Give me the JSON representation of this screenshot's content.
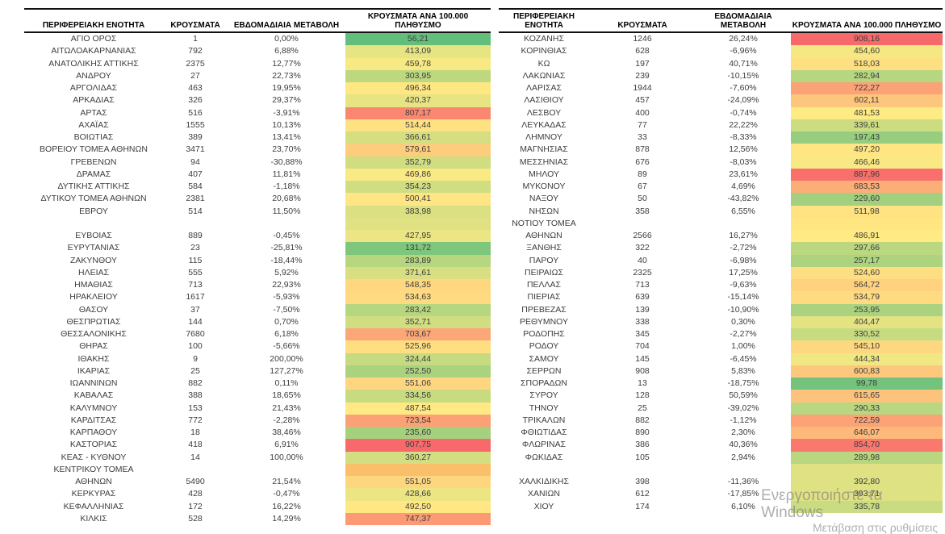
{
  "app": {
    "background": "#ffffff",
    "text_color": "#3d3d3d",
    "header_text_color": "#000000",
    "border_color": "#111111"
  },
  "color_scale": {
    "type": "3-color",
    "min_value": 56.21,
    "mid_value": 482.19,
    "max_value": 908.16,
    "min_color": "#63BE7B",
    "mid_color": "#FFEB84",
    "max_color": "#F8696B"
  },
  "tables": [
    {
      "id": "left",
      "headers": {
        "region": "ΠΕΡΙΦΕΡΕΙΑΚΗ ΕΝΟΤΗΤΑ",
        "cases": "ΚΡΟΥΣΜΑΤΑ",
        "change": "ΕΒΔΟΜΑΔΙΑΙΑ ΜΕΤΑΒΟΛΗ",
        "per100k": "ΚΡΟΥΣΜΑΤΑ ΑΝΑ 100.000 ΠΛΗΘΥΣΜΟ"
      },
      "rows": [
        {
          "name": "ΑΓΙΟ ΟΡΟΣ",
          "cases": "1",
          "change": "0,00%",
          "per100k": "56,21"
        },
        {
          "name": "ΑΙΤΩΛΟΑΚΑΡΝΑΝΙΑΣ",
          "cases": "792",
          "change": "6,88%",
          "per100k": "413,09"
        },
        {
          "name": "ΑΝΑΤΟΛΙΚΗΣ ΑΤΤΙΚΗΣ",
          "cases": "2375",
          "change": "12,77%",
          "per100k": "459,78"
        },
        {
          "name": "ΑΝΔΡΟΥ",
          "cases": "27",
          "change": "22,73%",
          "per100k": "303,95"
        },
        {
          "name": "ΑΡΓΟΛΙΔΑΣ",
          "cases": "463",
          "change": "19,95%",
          "per100k": "496,34"
        },
        {
          "name": "ΑΡΚΑΔΙΑΣ",
          "cases": "326",
          "change": "29,37%",
          "per100k": "420,37"
        },
        {
          "name": "ΑΡΤΑΣ",
          "cases": "516",
          "change": "-3,91%",
          "per100k": "807,17"
        },
        {
          "name": "ΑΧΑΪΑΣ",
          "cases": "1555",
          "change": "10,13%",
          "per100k": "514,44"
        },
        {
          "name": "ΒΟΙΩΤΙΑΣ",
          "cases": "389",
          "change": "13,41%",
          "per100k": "366,61"
        },
        {
          "name": "ΒΟΡΕΙΟΥ ΤΟΜΕΑ ΑΘΗΝΩΝ",
          "cases": "3471",
          "change": "23,70%",
          "per100k": "579,61"
        },
        {
          "name": "ΓΡΕΒΕΝΩΝ",
          "cases": "94",
          "change": "-30,88%",
          "per100k": "352,79"
        },
        {
          "name": "ΔΡΑΜΑΣ",
          "cases": "407",
          "change": "11,81%",
          "per100k": "469,86"
        },
        {
          "name": "ΔΥΤΙΚΗΣ ΑΤΤΙΚΗΣ",
          "cases": "584",
          "change": "-1,18%",
          "per100k": "354,23"
        },
        {
          "name": "ΔΥΤΙΚΟΥ ΤΟΜΕΑ ΑΘΗΝΩΝ",
          "cases": "2381",
          "change": "20,68%",
          "per100k": "500,41"
        },
        {
          "name": "ΕΒΡΟΥ",
          "cases": "514",
          "change": "11,50%",
          "per100k": "383,98"
        },
        {
          "name": "",
          "cases": "",
          "change": "",
          "per100k": "",
          "cell_color": "#dده182"
        },
        {
          "name": "ΕΥΒΟΙΑΣ",
          "cases": "889",
          "change": "-0,45%",
          "per100k": "427,95"
        },
        {
          "name": "ΕΥΡΥΤΑΝΙΑΣ",
          "cases": "23",
          "change": "-25,81%",
          "per100k": "131,72"
        },
        {
          "name": "ΖΑΚΥΝΘΟΥ",
          "cases": "115",
          "change": "-18,44%",
          "per100k": "283,89"
        },
        {
          "name": "ΗΛΕΙΑΣ",
          "cases": "555",
          "change": "5,92%",
          "per100k": "371,61"
        },
        {
          "name": "ΗΜΑΘΙΑΣ",
          "cases": "713",
          "change": "22,93%",
          "per100k": "548,35"
        },
        {
          "name": "ΗΡΑΚΛΕΙΟΥ",
          "cases": "1617",
          "change": "-5,93%",
          "per100k": "534,63"
        },
        {
          "name": "ΘΑΣΟΥ",
          "cases": "37",
          "change": "-7,50%",
          "per100k": "283,42"
        },
        {
          "name": "ΘΕΣΠΡΩΤΙΑΣ",
          "cases": "144",
          "change": "0,70%",
          "per100k": "352,71"
        },
        {
          "name": "ΘΕΣΣΑΛΟΝΙΚΗΣ",
          "cases": "7680",
          "change": "6,18%",
          "per100k": "703,67"
        },
        {
          "name": "ΘΗΡΑΣ",
          "cases": "100",
          "change": "-5,66%",
          "per100k": "525,96"
        },
        {
          "name": "ΙΘΑΚΗΣ",
          "cases": "9",
          "change": "200,00%",
          "per100k": "324,44"
        },
        {
          "name": "ΙΚΑΡΙΑΣ",
          "cases": "25",
          "change": "127,27%",
          "per100k": "252,50"
        },
        {
          "name": "ΙΩΑΝΝΙΝΩΝ",
          "cases": "882",
          "change": "0,11%",
          "per100k": "551,06"
        },
        {
          "name": "ΚΑΒΑΛΑΣ",
          "cases": "388",
          "change": "18,65%",
          "per100k": "334,56"
        },
        {
          "name": "ΚΑΛΥΜΝΟΥ",
          "cases": "153",
          "change": "21,43%",
          "per100k": "487,54"
        },
        {
          "name": "ΚΑΡΔΙΤΣΑΣ",
          "cases": "772",
          "change": "-2,28%",
          "per100k": "723,54"
        },
        {
          "name": "ΚΑΡΠΑΘΟΥ",
          "cases": "18",
          "change": "38,46%",
          "per100k": "235,60"
        },
        {
          "name": "ΚΑΣΤΟΡΙΑΣ",
          "cases": "418",
          "change": "6,91%",
          "per100k": "907,75"
        },
        {
          "name": "ΚΕΑΣ - ΚΥΘΝΟΥ",
          "cases": "14",
          "change": "100,00%",
          "per100k": "360,27"
        },
        {
          "name": "ΚΕΝΤΡΙΚΟΥ ΤΟΜΕΑ",
          "cases": "",
          "change": "",
          "per100k": "",
          "cell_color": "#f9bf6a"
        },
        {
          "name": "ΑΘΗΝΩΝ",
          "cases": "5490",
          "change": "21,54%",
          "per100k": "551,05"
        },
        {
          "name": "ΚΕΡΚΥΡΑΣ",
          "cases": "428",
          "change": "-0,47%",
          "per100k": "428,66"
        },
        {
          "name": "ΚΕΦΑΛΛΗΝΙΑΣ",
          "cases": "172",
          "change": "16,22%",
          "per100k": "492,50"
        },
        {
          "name": "ΚΙΛΚΙΣ",
          "cases": "528",
          "change": "14,29%",
          "per100k": "747,37"
        }
      ]
    },
    {
      "id": "right",
      "headers": {
        "region": "ΠΕΡΙΦΕΡΕΙΑΚΗ ΕΝΟΤΗΤΑ",
        "cases": "ΚΡΟΥΣΜΑΤΑ",
        "change": "ΕΒΔΟΜΑΔΙΑΙΑ ΜΕΤΑΒΟΛΗ",
        "per100k": "ΚΡΟΥΣΜΑΤΑ ΑΝΑ 100.000 ΠΛΗΘΥΣΜΟ"
      },
      "rows": [
        {
          "name": "ΚΟΖΑΝΗΣ",
          "cases": "1246",
          "change": "26,24%",
          "per100k": "908,16"
        },
        {
          "name": "ΚΟΡΙΝΘΙΑΣ",
          "cases": "628",
          "change": "-6,96%",
          "per100k": "454,60"
        },
        {
          "name": "ΚΩ",
          "cases": "197",
          "change": "40,71%",
          "per100k": "518,03"
        },
        {
          "name": "ΛΑΚΩΝΙΑΣ",
          "cases": "239",
          "change": "-10,15%",
          "per100k": "282,94"
        },
        {
          "name": "ΛΑΡΙΣΑΣ",
          "cases": "1944",
          "change": "-7,60%",
          "per100k": "722,27"
        },
        {
          "name": "ΛΑΣΙΘΙΟΥ",
          "cases": "457",
          "change": "-24,09%",
          "per100k": "602,11"
        },
        {
          "name": "ΛΕΣΒΟΥ",
          "cases": "400",
          "change": "-0,74%",
          "per100k": "481,53"
        },
        {
          "name": "ΛΕΥΚΑΔΑΣ",
          "cases": "77",
          "change": "22,22%",
          "per100k": "339,61"
        },
        {
          "name": "ΛΗΜΝΟΥ",
          "cases": "33",
          "change": "-8,33%",
          "per100k": "197,43"
        },
        {
          "name": "ΜΑΓΝΗΣΙΑΣ",
          "cases": "878",
          "change": "12,56%",
          "per100k": "497,20"
        },
        {
          "name": "ΜΕΣΣΗΝΙΑΣ",
          "cases": "676",
          "change": "-8,03%",
          "per100k": "466,46"
        },
        {
          "name": "ΜΗΛΟΥ",
          "cases": "89",
          "change": "23,61%",
          "per100k": "887,96"
        },
        {
          "name": "ΜΥΚΟΝΟΥ",
          "cases": "67",
          "change": "4,69%",
          "per100k": "683,53"
        },
        {
          "name": "ΝΑΞΟΥ",
          "cases": "50",
          "change": "-43,82%",
          "per100k": "229,60"
        },
        {
          "name": "ΝΗΣΩΝ",
          "cases": "358",
          "change": "6,55%",
          "per100k": "511,98"
        },
        {
          "name": "ΝΟΤΙΟΥ ΤΟΜΕΑ",
          "cases": "",
          "change": "",
          "per100k": "",
          "cell_color": "#ffe681"
        },
        {
          "name": "ΑΘΗΝΩΝ",
          "cases": "2566",
          "change": "16,27%",
          "per100k": "486,91"
        },
        {
          "name": "ΞΑΝΘΗΣ",
          "cases": "322",
          "change": "-2,72%",
          "per100k": "297,66"
        },
        {
          "name": "ΠΑΡΟΥ",
          "cases": "40",
          "change": "-6,98%",
          "per100k": "257,17"
        },
        {
          "name": "ΠΕΙΡΑΙΩΣ",
          "cases": "2325",
          "change": "17,25%",
          "per100k": "524,60"
        },
        {
          "name": "ΠΕΛΛΑΣ",
          "cases": "713",
          "change": "-9,63%",
          "per100k": "564,72"
        },
        {
          "name": "ΠΙΕΡΙΑΣ",
          "cases": "639",
          "change": "-15,14%",
          "per100k": "534,79"
        },
        {
          "name": "ΠΡΕΒΕΖΑΣ",
          "cases": "139",
          "change": "-10,90%",
          "per100k": "253,95"
        },
        {
          "name": "ΡΕΘΥΜΝΟΥ",
          "cases": "338",
          "change": "0,30%",
          "per100k": "404,47"
        },
        {
          "name": "ΡΟΔΟΠΗΣ",
          "cases": "345",
          "change": "-2,27%",
          "per100k": "330,52"
        },
        {
          "name": "ΡΟΔΟΥ",
          "cases": "704",
          "change": "1,00%",
          "per100k": "545,10"
        },
        {
          "name": "ΣΑΜΟΥ",
          "cases": "145",
          "change": "-6,45%",
          "per100k": "444,34"
        },
        {
          "name": "ΣΕΡΡΩΝ",
          "cases": "908",
          "change": "5,83%",
          "per100k": "600,83"
        },
        {
          "name": "ΣΠΟΡΑΔΩΝ",
          "cases": "13",
          "change": "-18,75%",
          "per100k": "99,78"
        },
        {
          "name": "ΣΥΡΟΥ",
          "cases": "128",
          "change": "50,59%",
          "per100k": "615,65"
        },
        {
          "name": "ΤΗΝΟΥ",
          "cases": "25",
          "change": "-39,02%",
          "per100k": "290,33"
        },
        {
          "name": "ΤΡΙΚΑΛΩΝ",
          "cases": "882",
          "change": "-1,12%",
          "per100k": "722,59"
        },
        {
          "name": "ΦΘΙΩΤΙΔΑΣ",
          "cases": "890",
          "change": "2,30%",
          "per100k": "646,07"
        },
        {
          "name": "ΦΛΩΡΙΝΑΣ",
          "cases": "386",
          "change": "40,36%",
          "per100k": "854,70"
        },
        {
          "name": "ΦΩΚΙΔΑΣ",
          "cases": "105",
          "change": "2,94%",
          "per100k": "289,98"
        },
        {
          "name": "",
          "cases": "",
          "change": "",
          "per100k": "",
          "cell_color": "#dfe182"
        },
        {
          "name": "ΧΑΛΚΙΔΙΚΗΣ",
          "cases": "398",
          "change": "-11,36%",
          "per100k": "392,80"
        },
        {
          "name": "ΧΑΝΙΩΝ",
          "cases": "612",
          "change": "-17,85%",
          "per100k": "393,71"
        },
        {
          "name": "ΧΙΟΥ",
          "cases": "174",
          "change": "6,10%",
          "per100k": "335,78"
        }
      ]
    }
  ],
  "watermark": {
    "line1": "Ενεργοποιήστε τα Windows",
    "line2": "Μετάβαση στις ρυθμίσεις"
  }
}
